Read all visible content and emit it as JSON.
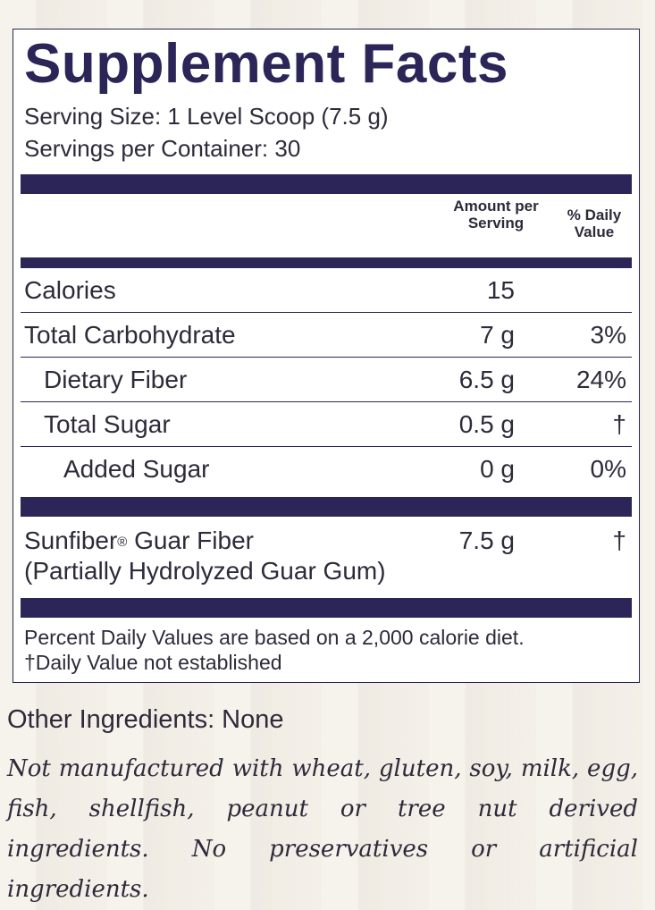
{
  "panel": {
    "title": "Supplement Facts",
    "serving_size": "Serving Size: 1 Level Scoop (7.5 g)",
    "servings_per_container": "Servings per Container: 30",
    "col_amount": "Amount per Serving",
    "col_dv": "% Daily Value",
    "rows": [
      {
        "label": "Calories",
        "amount": "15",
        "dv": ""
      },
      {
        "label": "Total Carbohydrate",
        "amount": "7 g",
        "dv": "3%"
      },
      {
        "label": "Dietary Fiber",
        "amount": "6.5 g",
        "dv": "24%"
      },
      {
        "label": "Total Sugar",
        "amount": "0.5 g",
        "dv": "†"
      },
      {
        "label": "Added Sugar",
        "amount": "0 g",
        "dv": "0%"
      }
    ],
    "ingredient": {
      "name": "Sunfiber",
      "mark": "®",
      "name_rest": " Guar Fiber",
      "subtitle": "(Partially Hydrolyzed Guar Gum)",
      "amount": "7.5 g",
      "dv": "†"
    },
    "footnote_1": "Percent Daily Values are based on a 2,000 calorie diet.",
    "footnote_2": "†Daily Value not established"
  },
  "other_ingredients": "Other Ingredients: None",
  "disclaimer": "Not manufactured with wheat, gluten, soy, milk, egg, fish, shellfish, peanut or tree nut derived ingredients. No preservatives or artificial ingredients.",
  "colors": {
    "accent": "#2b2558",
    "text": "#2e2a3a",
    "background": "#f3eee6"
  }
}
